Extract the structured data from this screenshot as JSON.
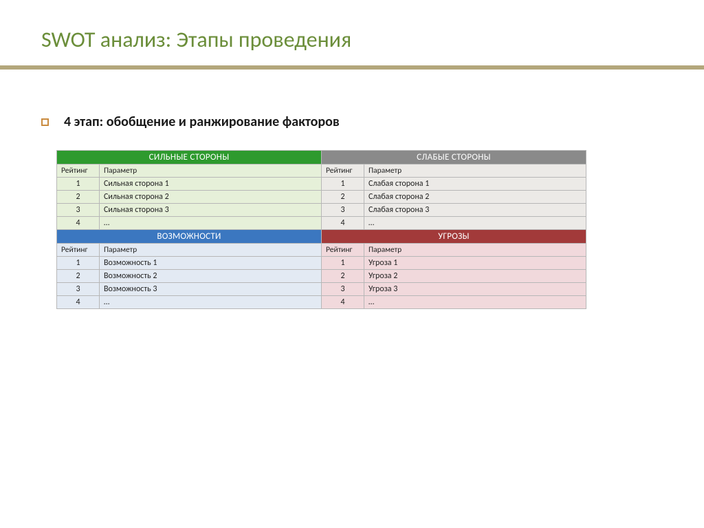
{
  "title": "SWOT анализ: Этапы проведения",
  "bullet": "4 этап: обобщение и ранжирование факторов",
  "columns": {
    "rating": "Рейтинг",
    "param": "Параметр"
  },
  "quadrants": {
    "strengths": {
      "label": "СИЛЬНЫЕ СТОРОНЫ",
      "head_bg": "#2e9a2e",
      "body_bg": "#e6f0d9",
      "rows": [
        {
          "rating": "1",
          "param": "Сильная сторона 1"
        },
        {
          "rating": "2",
          "param": "Сильная сторона 2"
        },
        {
          "rating": "3",
          "param": "Сильная сторона 3"
        },
        {
          "rating": "4",
          "param": "…"
        }
      ]
    },
    "weaknesses": {
      "label": "СЛАБЫЕ СТОРОНЫ",
      "head_bg": "#8a8a8a",
      "body_bg": "#eceae7",
      "rows": [
        {
          "rating": "1",
          "param": "Слабая сторона 1"
        },
        {
          "rating": "2",
          "param": "Слабая сторона 2"
        },
        {
          "rating": "3",
          "param": "Слабая сторона 3"
        },
        {
          "rating": "4",
          "param": "…"
        }
      ]
    },
    "opportunities": {
      "label": "ВОЗМОЖНОСТИ",
      "head_bg": "#3b77c0",
      "body_bg": "#e3eaf3",
      "rows": [
        {
          "rating": "1",
          "param": "Возможность 1"
        },
        {
          "rating": "2",
          "param": "Возможность 2"
        },
        {
          "rating": "3",
          "param": "Возможность 3"
        },
        {
          "rating": "4",
          "param": "…"
        }
      ]
    },
    "threats": {
      "label": "УГРОЗЫ",
      "head_bg": "#a23a3a",
      "body_bg": "#f1d9dc",
      "rows": [
        {
          "rating": "1",
          "param": "Угроза 1"
        },
        {
          "rating": "2",
          "param": "Угроза 2"
        },
        {
          "rating": "3",
          "param": "Угроза 3"
        },
        {
          "rating": "4",
          "param": "…"
        }
      ]
    }
  },
  "colors": {
    "title": "#6b8e3a",
    "rule": "#b3a77c",
    "bullet_border": "#c98b3f",
    "white": "#ffffff",
    "border": "#b7b7b7"
  }
}
